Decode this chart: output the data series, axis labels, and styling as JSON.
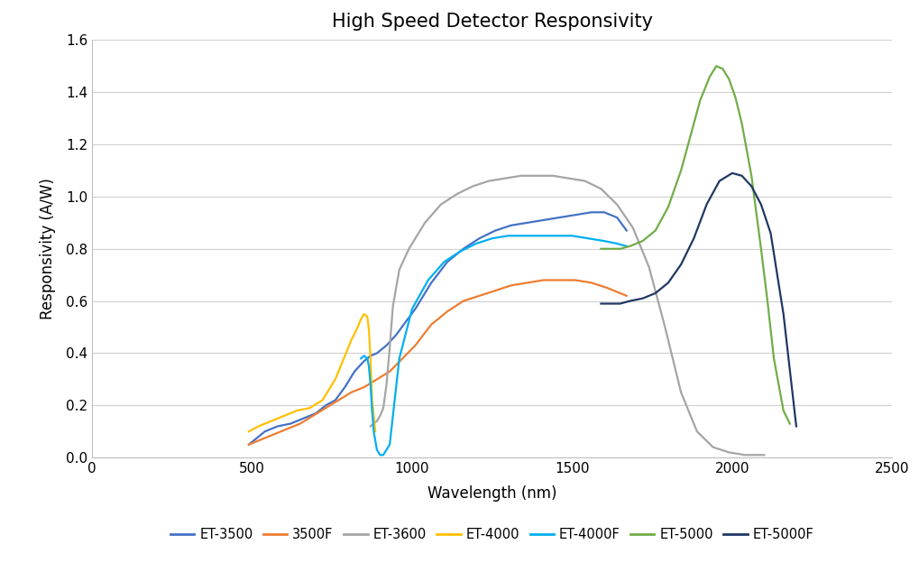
{
  "title": "High Speed Detector Responsivity",
  "xlabel": "Wavelength (nm)",
  "ylabel": "Responsivity (A/W)",
  "xlim": [
    0,
    2500
  ],
  "ylim": [
    0,
    1.6
  ],
  "xticks": [
    0,
    500,
    1000,
    1500,
    2000,
    2500
  ],
  "yticks": [
    0,
    0.2,
    0.4,
    0.6,
    0.8,
    1.0,
    1.2,
    1.4,
    1.6
  ],
  "background_color": "#ffffff",
  "plot_bg_color": "#ffffff",
  "grid_color": "#d0d0d0",
  "series": [
    {
      "label": "ET-3500",
      "color": "#4472c4",
      "linewidth": 1.6,
      "x": [
        490,
        510,
        540,
        580,
        620,
        660,
        700,
        730,
        760,
        790,
        820,
        850,
        870,
        890,
        920,
        950,
        980,
        1010,
        1060,
        1110,
        1160,
        1210,
        1260,
        1310,
        1360,
        1410,
        1460,
        1510,
        1560,
        1600,
        1640,
        1670
      ],
      "y": [
        0.05,
        0.07,
        0.1,
        0.12,
        0.13,
        0.15,
        0.17,
        0.2,
        0.22,
        0.27,
        0.33,
        0.37,
        0.39,
        0.4,
        0.43,
        0.47,
        0.52,
        0.57,
        0.67,
        0.75,
        0.8,
        0.84,
        0.87,
        0.89,
        0.9,
        0.91,
        0.92,
        0.93,
        0.94,
        0.94,
        0.92,
        0.87
      ]
    },
    {
      "label": "3500F",
      "color": "#ed7d31",
      "linewidth": 1.6,
      "x": [
        490,
        530,
        570,
        610,
        650,
        690,
        730,
        770,
        810,
        850,
        890,
        930,
        970,
        1010,
        1060,
        1110,
        1160,
        1210,
        1260,
        1310,
        1360,
        1410,
        1460,
        1510,
        1560,
        1610,
        1650,
        1670
      ],
      "y": [
        0.05,
        0.07,
        0.09,
        0.11,
        0.13,
        0.16,
        0.19,
        0.22,
        0.25,
        0.27,
        0.3,
        0.33,
        0.38,
        0.43,
        0.51,
        0.56,
        0.6,
        0.62,
        0.64,
        0.66,
        0.67,
        0.68,
        0.68,
        0.68,
        0.67,
        0.65,
        0.63,
        0.62
      ]
    },
    {
      "label": "ET-3600",
      "color": "#a5a5a5",
      "linewidth": 1.6,
      "x": [
        870,
        880,
        890,
        900,
        910,
        920,
        930,
        940,
        960,
        990,
        1040,
        1090,
        1140,
        1190,
        1240,
        1290,
        1340,
        1390,
        1440,
        1490,
        1540,
        1590,
        1640,
        1690,
        1740,
        1790,
        1840,
        1890,
        1940,
        1990,
        2040,
        2080,
        2100
      ],
      "y": [
        0.12,
        0.13,
        0.14,
        0.16,
        0.19,
        0.28,
        0.42,
        0.58,
        0.72,
        0.8,
        0.9,
        0.97,
        1.01,
        1.04,
        1.06,
        1.07,
        1.08,
        1.08,
        1.08,
        1.07,
        1.06,
        1.03,
        0.97,
        0.88,
        0.73,
        0.5,
        0.25,
        0.1,
        0.04,
        0.02,
        0.01,
        0.01,
        0.01
      ]
    },
    {
      "label": "ET-4000",
      "color": "#ffc000",
      "linewidth": 1.6,
      "x": [
        490,
        520,
        560,
        600,
        640,
        680,
        720,
        760,
        790,
        810,
        830,
        840,
        850,
        860,
        865,
        870,
        875,
        885
      ],
      "y": [
        0.1,
        0.12,
        0.14,
        0.16,
        0.18,
        0.19,
        0.22,
        0.3,
        0.39,
        0.45,
        0.5,
        0.53,
        0.55,
        0.54,
        0.49,
        0.38,
        0.22,
        0.1
      ]
    },
    {
      "label": "ET-4000F",
      "color": "#00b0f0",
      "linewidth": 1.6,
      "x": [
        840,
        850,
        860,
        865,
        870,
        875,
        880,
        890,
        900,
        910,
        930,
        960,
        1000,
        1050,
        1100,
        1150,
        1200,
        1250,
        1300,
        1350,
        1400,
        1450,
        1500,
        1550,
        1600,
        1640,
        1670
      ],
      "y": [
        0.38,
        0.39,
        0.38,
        0.35,
        0.28,
        0.18,
        0.1,
        0.03,
        0.01,
        0.01,
        0.05,
        0.38,
        0.57,
        0.68,
        0.75,
        0.79,
        0.82,
        0.84,
        0.85,
        0.85,
        0.85,
        0.85,
        0.85,
        0.84,
        0.83,
        0.82,
        0.81
      ]
    },
    {
      "label": "ET-5000",
      "color": "#70ad47",
      "linewidth": 1.6,
      "x": [
        1590,
        1620,
        1650,
        1680,
        1720,
        1760,
        1800,
        1840,
        1880,
        1900,
        1930,
        1950,
        1970,
        1990,
        2010,
        2030,
        2060,
        2090,
        2110,
        2130,
        2160,
        2180
      ],
      "y": [
        0.8,
        0.8,
        0.8,
        0.81,
        0.83,
        0.87,
        0.96,
        1.1,
        1.28,
        1.37,
        1.46,
        1.5,
        1.49,
        1.45,
        1.38,
        1.28,
        1.08,
        0.8,
        0.6,
        0.38,
        0.18,
        0.13
      ]
    },
    {
      "label": "ET-5000F",
      "color": "#1f3864",
      "linewidth": 1.6,
      "x": [
        1590,
        1620,
        1650,
        1680,
        1720,
        1760,
        1800,
        1840,
        1880,
        1920,
        1960,
        2000,
        2030,
        2060,
        2090,
        2120,
        2160,
        2200
      ],
      "y": [
        0.59,
        0.59,
        0.59,
        0.6,
        0.61,
        0.63,
        0.67,
        0.74,
        0.84,
        0.97,
        1.06,
        1.09,
        1.08,
        1.04,
        0.97,
        0.86,
        0.55,
        0.12
      ]
    }
  ]
}
